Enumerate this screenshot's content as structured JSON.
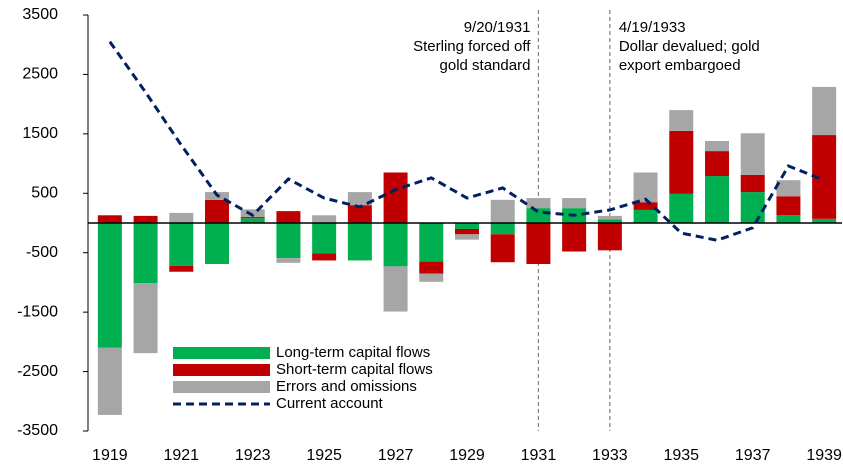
{
  "chart_data": {
    "type": "bar",
    "stacked": true,
    "categories": [
      "1919",
      null,
      "1921",
      null,
      "1923",
      null,
      "1925",
      null,
      "1927",
      null,
      "1929",
      null,
      "1931",
      null,
      "1933",
      null,
      "1935",
      null,
      "1937",
      null,
      "1939"
    ],
    "series": [
      {
        "name": "Long-term capital flows",
        "color": "#00b050",
        "type": "bar",
        "values": [
          -2100,
          -1010,
          -720,
          -690,
          80,
          -590,
          -510,
          -630,
          -730,
          -650,
          -100,
          -190,
          250,
          250,
          60,
          220,
          490,
          790,
          520,
          130,
          70
        ]
      },
      {
        "name": "Short-term capital flows",
        "color": "#c00000",
        "type": "bar",
        "values": [
          130,
          120,
          -100,
          390,
          20,
          200,
          -120,
          300,
          850,
          -200,
          -90,
          -470,
          -690,
          -480,
          -460,
          130,
          1060,
          420,
          290,
          320,
          1410
        ]
      },
      {
        "name": "Errors and omissions",
        "color": "#a6a6a6",
        "type": "bar",
        "values": [
          -1130,
          -1180,
          170,
          130,
          130,
          -80,
          130,
          220,
          -760,
          -140,
          -90,
          390,
          170,
          170,
          60,
          500,
          350,
          170,
          700,
          270,
          810
        ]
      },
      {
        "name": "Current account",
        "color": "#002060",
        "type": "line",
        "dashed": true,
        "values": [
          3050,
          2200,
          1310,
          470,
          130,
          740,
          420,
          270,
          560,
          760,
          420,
          590,
          185,
          130,
          220,
          400,
          -170,
          -290,
          -80,
          960,
          720
        ]
      }
    ],
    "ylim": [
      -3500,
      3500
    ],
    "yticks": [
      -3500,
      -2500,
      -1500,
      -500,
      500,
      1500,
      2500,
      3500
    ],
    "legend": "lower-left",
    "annotations": [
      {
        "category": "1931",
        "align": "right",
        "lines": [
          "9/20/1931",
          "Sterling forced off",
          "gold standard"
        ]
      },
      {
        "category": "1933",
        "align": "left",
        "lines": [
          "4/19/1933",
          "Dollar devalued;  gold",
          "export embargoed"
        ]
      }
    ]
  }
}
